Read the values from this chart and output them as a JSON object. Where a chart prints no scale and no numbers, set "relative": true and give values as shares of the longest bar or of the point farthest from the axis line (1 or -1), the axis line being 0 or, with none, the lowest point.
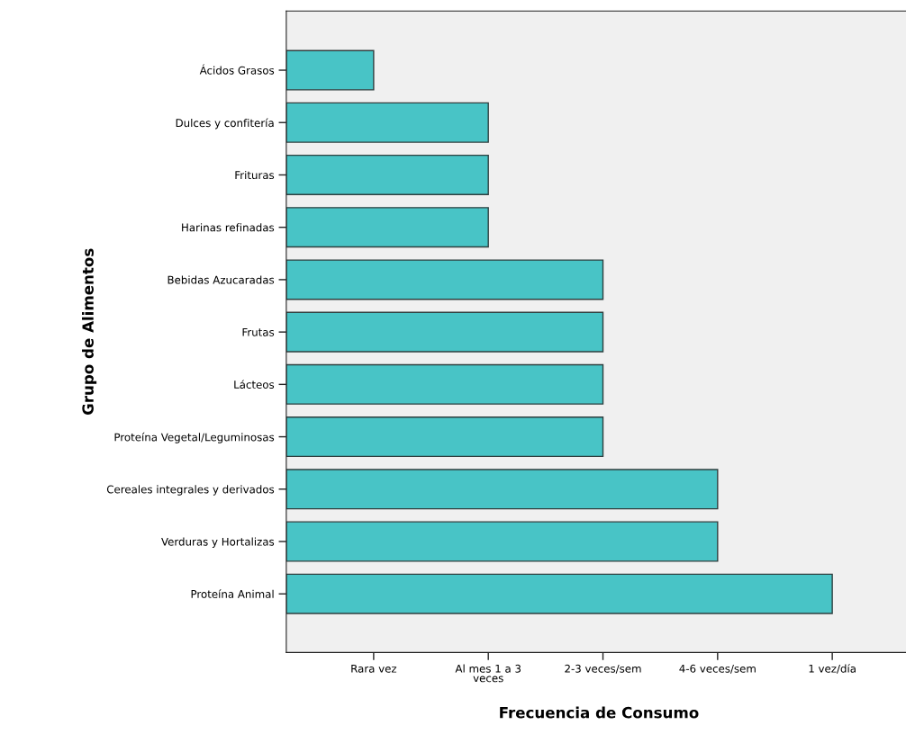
{
  "chart_data": {
    "type": "bar",
    "orientation": "horizontal",
    "xlabel": "Frecuencia de Consumo",
    "ylabel": "Grupo de Alimentos",
    "categories": [
      "Ácidos Grasos",
      "Dulces y confitería",
      "Frituras",
      "Harinas refinadas",
      "Bebidas Azucaradas",
      "Frutas",
      "Lácteos",
      "Proteína Vegetal/Leguminosas",
      "Cereales integrales y derivados",
      "Verduras y Hortalizas",
      "Proteína Animal"
    ],
    "values": [
      0.16,
      0.37,
      0.37,
      0.37,
      0.58,
      0.58,
      0.58,
      0.58,
      0.79,
      0.79,
      1
    ],
    "relative": true,
    "color": "#48c4c6",
    "annotations": [
      {
        "text": "Rara vez",
        "x": 0.16
      },
      {
        "text": "Al mes 1 a 3\nveces",
        "x": 0.37
      },
      {
        "text": "2-3 veces/sem",
        "x": 0.58
      },
      {
        "text": "4-6 veces/sem",
        "x": 0.79
      },
      {
        "text": "1 vez/día",
        "x": 1
      }
    ],
    "grid": false,
    "legend": false
  }
}
